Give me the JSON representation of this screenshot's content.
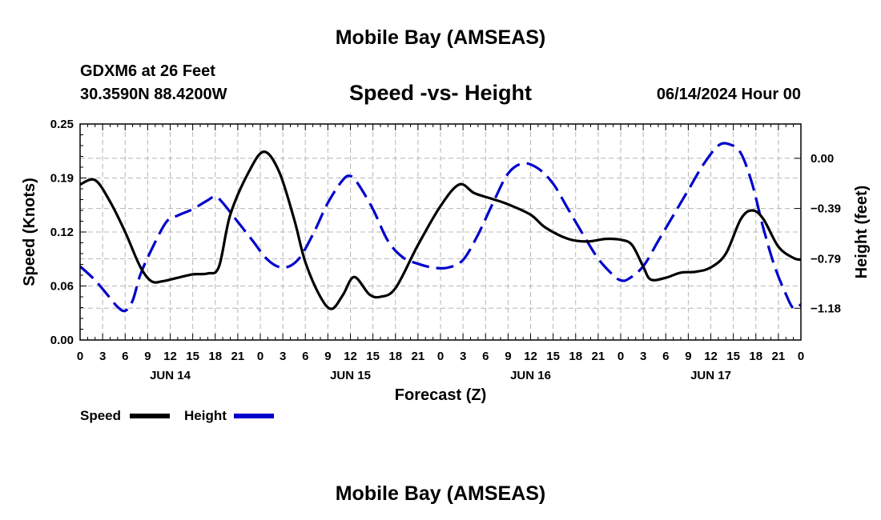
{
  "chart_data": {
    "type": "line",
    "title": "Mobile Bay (AMSEAS)",
    "subtitle": "Speed -vs- Height",
    "station": "GDXM6 at 26 Feet",
    "location": "30.3590N  88.4200W",
    "run": "06/14/2024 Hour 00",
    "xlabel": "Forecast (Z)",
    "ylabel_left": "Speed (Knots)",
    "ylabel_right": "Height (feet)",
    "footer_title": "Mobile Bay (AMSEAS)",
    "x_range_hours": [
      0,
      96
    ],
    "ylim_left": [
      0,
      0.25
    ],
    "ylim_right": [
      -1.43,
      0.27
    ],
    "left_ticks": [
      {
        "value": 0,
        "label": "0.00"
      },
      {
        "value": 0.0625,
        "label": "0.06"
      },
      {
        "value": 0.125,
        "label": "0.12"
      },
      {
        "value": 0.1875,
        "label": "0.19"
      },
      {
        "value": 0.25,
        "label": "0.25"
      }
    ],
    "right_ticks": [
      {
        "value": 0.0,
        "label": "0.00"
      },
      {
        "value": -0.395,
        "label": "−0.39"
      },
      {
        "value": -0.79,
        "label": "−0.79"
      },
      {
        "value": -1.18,
        "label": "−1.18"
      }
    ],
    "x_tick_labels": [
      "0",
      "3",
      "6",
      "9",
      "12",
      "15",
      "18",
      "21",
      "0",
      "3",
      "6",
      "9",
      "12",
      "15",
      "18",
      "21",
      "0",
      "3",
      "6",
      "9",
      "12",
      "15",
      "18",
      "21",
      "0",
      "3",
      "6",
      "9",
      "12",
      "15",
      "18",
      "21",
      "0"
    ],
    "day_labels": [
      {
        "hour": 12,
        "label": "JUN 14"
      },
      {
        "hour": 36,
        "label": "JUN 15"
      },
      {
        "hour": 60,
        "label": "JUN 16"
      },
      {
        "hour": 84,
        "label": "JUN 17"
      }
    ],
    "series": [
      {
        "name": "Speed",
        "axis": "left",
        "color": "#000000",
        "style": "solid",
        "points": [
          [
            0,
            0.18
          ],
          [
            2,
            0.185
          ],
          [
            4,
            0.16
          ],
          [
            6,
            0.125
          ],
          [
            8,
            0.085
          ],
          [
            9.5,
            0.068
          ],
          [
            11,
            0.068
          ],
          [
            13,
            0.072
          ],
          [
            15,
            0.076
          ],
          [
            17,
            0.077
          ],
          [
            18.5,
            0.085
          ],
          [
            20,
            0.145
          ],
          [
            22.5,
            0.195
          ],
          [
            24.5,
            0.218
          ],
          [
            26.5,
            0.195
          ],
          [
            28.5,
            0.14
          ],
          [
            30,
            0.09
          ],
          [
            32,
            0.05
          ],
          [
            33.5,
            0.036
          ],
          [
            35,
            0.052
          ],
          [
            36.5,
            0.073
          ],
          [
            38.5,
            0.053
          ],
          [
            40,
            0.05
          ],
          [
            42,
            0.06
          ],
          [
            45,
            0.11
          ],
          [
            48,
            0.155
          ],
          [
            50.5,
            0.18
          ],
          [
            52.5,
            0.17
          ],
          [
            55,
            0.163
          ],
          [
            57,
            0.157
          ],
          [
            60,
            0.145
          ],
          [
            62,
            0.13
          ],
          [
            65,
            0.117
          ],
          [
            67.5,
            0.114
          ],
          [
            70,
            0.117
          ],
          [
            72,
            0.116
          ],
          [
            73.5,
            0.11
          ],
          [
            75,
            0.085
          ],
          [
            76,
            0.07
          ],
          [
            78,
            0.072
          ],
          [
            80,
            0.078
          ],
          [
            82,
            0.079
          ],
          [
            84,
            0.084
          ],
          [
            86,
            0.1
          ],
          [
            88,
            0.14
          ],
          [
            89.5,
            0.15
          ],
          [
            91,
            0.14
          ],
          [
            93,
            0.108
          ],
          [
            95,
            0.095
          ],
          [
            96,
            0.093
          ]
        ]
      },
      {
        "name": "Height",
        "axis": "right",
        "color": "#0000cc",
        "style": "dashed",
        "points": [
          [
            0,
            -0.85
          ],
          [
            2,
            -0.96
          ],
          [
            4,
            -1.1
          ],
          [
            5,
            -1.17
          ],
          [
            6,
            -1.2
          ],
          [
            7,
            -1.12
          ],
          [
            8,
            -0.92
          ],
          [
            9.5,
            -0.72
          ],
          [
            11.5,
            -0.5
          ],
          [
            13,
            -0.45
          ],
          [
            15,
            -0.4
          ],
          [
            17,
            -0.33
          ],
          [
            18,
            -0.3
          ],
          [
            19,
            -0.35
          ],
          [
            21,
            -0.5
          ],
          [
            23,
            -0.65
          ],
          [
            25,
            -0.8
          ],
          [
            27,
            -0.86
          ],
          [
            29,
            -0.8
          ],
          [
            31,
            -0.6
          ],
          [
            33,
            -0.35
          ],
          [
            35,
            -0.17
          ],
          [
            36,
            -0.14
          ],
          [
            37,
            -0.2
          ],
          [
            39,
            -0.4
          ],
          [
            41,
            -0.65
          ],
          [
            43,
            -0.78
          ],
          [
            45,
            -0.83
          ],
          [
            47,
            -0.86
          ],
          [
            49,
            -0.86
          ],
          [
            51,
            -0.8
          ],
          [
            53,
            -0.6
          ],
          [
            55,
            -0.35
          ],
          [
            57,
            -0.12
          ],
          [
            59,
            -0.04
          ],
          [
            61,
            -0.08
          ],
          [
            63,
            -0.2
          ],
          [
            65,
            -0.4
          ],
          [
            67,
            -0.6
          ],
          [
            69,
            -0.79
          ],
          [
            71,
            -0.92
          ],
          [
            72,
            -0.96
          ],
          [
            73,
            -0.95
          ],
          [
            75,
            -0.85
          ],
          [
            77,
            -0.65
          ],
          [
            79,
            -0.45
          ],
          [
            81,
            -0.25
          ],
          [
            83,
            -0.05
          ],
          [
            85,
            0.1
          ],
          [
            86.5,
            0.11
          ],
          [
            88,
            0.04
          ],
          [
            89.5,
            -0.2
          ],
          [
            91,
            -0.55
          ],
          [
            92.5,
            -0.85
          ],
          [
            94,
            -1.07
          ],
          [
            95,
            -1.18
          ],
          [
            96,
            -1.15
          ]
        ]
      }
    ]
  }
}
